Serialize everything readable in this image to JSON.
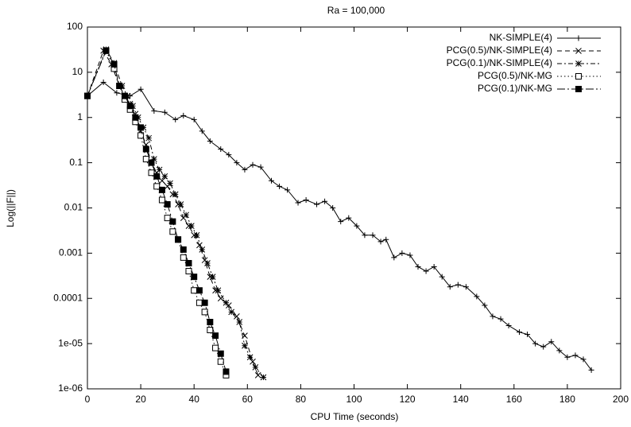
{
  "chart_data": {
    "type": "line",
    "title": "Ra = 100,000",
    "xlabel": "CPU Time (seconds)",
    "ylabel": "Log(||F||)",
    "xlim": [
      0,
      200
    ],
    "xticks": [
      0,
      20,
      40,
      60,
      80,
      100,
      120,
      140,
      160,
      180,
      200
    ],
    "ylim": [
      1e-06,
      100
    ],
    "ylog": true,
    "yticks": [
      100,
      10,
      1,
      0.1,
      0.01,
      0.001,
      0.0001,
      {
        "value": 1e-05,
        "label": "1e-05"
      },
      {
        "value": 1e-06,
        "label": "1e-06"
      }
    ],
    "legend": "top-right",
    "series": [
      {
        "name": "NK-SIMPLE(4)",
        "color": "#000000",
        "marker": "plus",
        "dash": "solid",
        "x": [
          0,
          6,
          11,
          16,
          20,
          25,
          29,
          33,
          36,
          40,
          43,
          46,
          50,
          53,
          56,
          59,
          62,
          65,
          69,
          72,
          75,
          79,
          82,
          86,
          89,
          92,
          95,
          98,
          101,
          104,
          107,
          110,
          112,
          115,
          118,
          121,
          124,
          127,
          130,
          133,
          136,
          139,
          142,
          146,
          149,
          152,
          155,
          158,
          162,
          165,
          168,
          171,
          174,
          177,
          180,
          183,
          186,
          189
        ],
        "values": [
          3,
          6,
          3.5,
          3,
          4.2,
          1.4,
          1.3,
          0.9,
          1.1,
          0.9,
          0.5,
          0.3,
          0.2,
          0.15,
          0.1,
          0.07,
          0.09,
          0.08,
          0.04,
          0.03,
          0.025,
          0.013,
          0.015,
          0.012,
          0.014,
          0.01,
          0.005,
          0.006,
          0.004,
          0.0025,
          0.0025,
          0.0018,
          0.002,
          0.0008,
          0.001,
          0.0009,
          0.0005,
          0.0004,
          0.0005,
          0.0003,
          0.00018,
          0.0002,
          0.00018,
          0.00011,
          7e-05,
          4e-05,
          3.5e-05,
          2.5e-05,
          1.8e-05,
          1.6e-05,
          1e-05,
          8.5e-06,
          1.1e-05,
          7e-06,
          5e-06,
          5.5e-06,
          4.5e-06,
          2.6e-06
        ]
      },
      {
        "name": "PCG(0.5)/NK-SIMPLE(4)",
        "color": "#000000",
        "marker": "cross",
        "dash": "dashed",
        "x": [
          0,
          6,
          9,
          12,
          14,
          16,
          18,
          20,
          22,
          24,
          26,
          28,
          30,
          32,
          34,
          36,
          38,
          40,
          42,
          44,
          46,
          48,
          50,
          53,
          56,
          59,
          62,
          64
        ],
        "values": [
          3,
          30,
          15,
          5,
          3,
          2,
          1.2,
          0.5,
          0.25,
          0.1,
          0.06,
          0.04,
          0.03,
          0.02,
          0.012,
          0.006,
          0.004,
          0.0025,
          0.0015,
          0.0007,
          0.0003,
          0.00015,
          0.0001,
          7e-05,
          4e-05,
          1.5e-05,
          4e-06,
          2e-06
        ]
      },
      {
        "name": "PCG(0.1)/NK-SIMPLE(4)",
        "color": "#000000",
        "marker": "star",
        "dash": "dashdot",
        "x": [
          0,
          7,
          10,
          13,
          15,
          17,
          19,
          21,
          23,
          25,
          27,
          29,
          31,
          33,
          35,
          37,
          39,
          41,
          43,
          45,
          47,
          49,
          52,
          54,
          57,
          59,
          61,
          63,
          66
        ],
        "values": [
          3,
          32,
          16,
          5,
          3,
          1.8,
          1,
          0.6,
          0.35,
          0.12,
          0.07,
          0.05,
          0.035,
          0.02,
          0.012,
          0.007,
          0.004,
          0.0025,
          0.0012,
          0.0006,
          0.0003,
          0.00015,
          8e-05,
          5e-05,
          3e-05,
          9e-06,
          5e-06,
          3e-06,
          1.8e-06
        ]
      },
      {
        "name": "PCG(0.5)/NK-MG",
        "color": "#000000",
        "marker": "square",
        "dash": "dotted",
        "x": [
          0,
          7,
          10,
          12,
          14,
          16,
          18,
          20,
          22,
          24,
          26,
          28,
          30,
          32,
          34,
          36,
          38,
          40,
          42,
          44,
          46,
          48,
          50,
          52
        ],
        "values": [
          3,
          30,
          12,
          5,
          2.5,
          1.5,
          0.8,
          0.4,
          0.12,
          0.06,
          0.03,
          0.015,
          0.006,
          0.003,
          0.002,
          0.0008,
          0.0004,
          0.00015,
          8e-05,
          5e-05,
          2e-05,
          8e-06,
          4e-06,
          2e-06
        ]
      },
      {
        "name": "PCG(0.1)/NK-MG",
        "color": "#000000",
        "marker": "filledsquare",
        "dash": "longdashdot",
        "x": [
          0,
          7,
          10,
          12,
          14,
          16,
          18,
          20,
          22,
          24,
          26,
          28,
          30,
          32,
          34,
          36,
          38,
          40,
          42,
          44,
          46,
          48,
          50,
          52
        ],
        "values": [
          3,
          30,
          15,
          5,
          3,
          1.8,
          1,
          0.6,
          0.2,
          0.1,
          0.05,
          0.025,
          0.012,
          0.005,
          0.002,
          0.0012,
          0.0006,
          0.0003,
          0.00015,
          8e-05,
          3e-05,
          1.5e-05,
          6e-06,
          2.4e-06
        ]
      }
    ]
  }
}
